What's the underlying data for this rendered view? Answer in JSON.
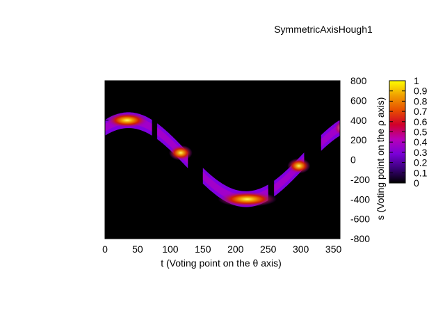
{
  "chart_data": {
    "type": "heatmap",
    "title": "SymmetricAxisHough1",
    "xlabel": "t (Voting point on the θ axis)",
    "ylabel": "s (Voting point on the ρ axis)",
    "xlim": [
      0,
      360
    ],
    "ylim": [
      -800,
      800
    ],
    "xticks": [
      0,
      50,
      100,
      150,
      200,
      250,
      300,
      350
    ],
    "yticks": [
      800,
      600,
      400,
      200,
      0,
      -200,
      -400,
      -600,
      -800
    ],
    "colorbar": {
      "range": [
        0,
        1
      ],
      "ticks": [
        1,
        0.9,
        0.8,
        0.7,
        0.6,
        0.5,
        0.4,
        0.3,
        0.2,
        0.1,
        0
      ],
      "palette": [
        "#000000",
        "#3a007a",
        "#7a00d8",
        "#b800b8",
        "#d0002a",
        "#e85000",
        "#f0a000",
        "#ffff00"
      ]
    },
    "background": "#000000",
    "band": {
      "curve": "s = 400 * cos((t - 36) deg)",
      "half_width": 80,
      "visible_segments": [
        {
          "t": [
            0,
            72
          ],
          "peak_t": 34,
          "peak_value": 1.0
        },
        {
          "t": [
            80,
            127
          ],
          "peak_t": 116,
          "peak_value": 0.85
        },
        {
          "t": [
            150,
            250
          ],
          "peak_t": 218,
          "peak_value": 1.0
        },
        {
          "t": [
            259,
            305
          ],
          "peak_t": 297,
          "peak_value": 0.85
        },
        {
          "t": [
            331,
            360
          ],
          "peak_t": 360,
          "peak_value": 0.3
        }
      ]
    }
  }
}
